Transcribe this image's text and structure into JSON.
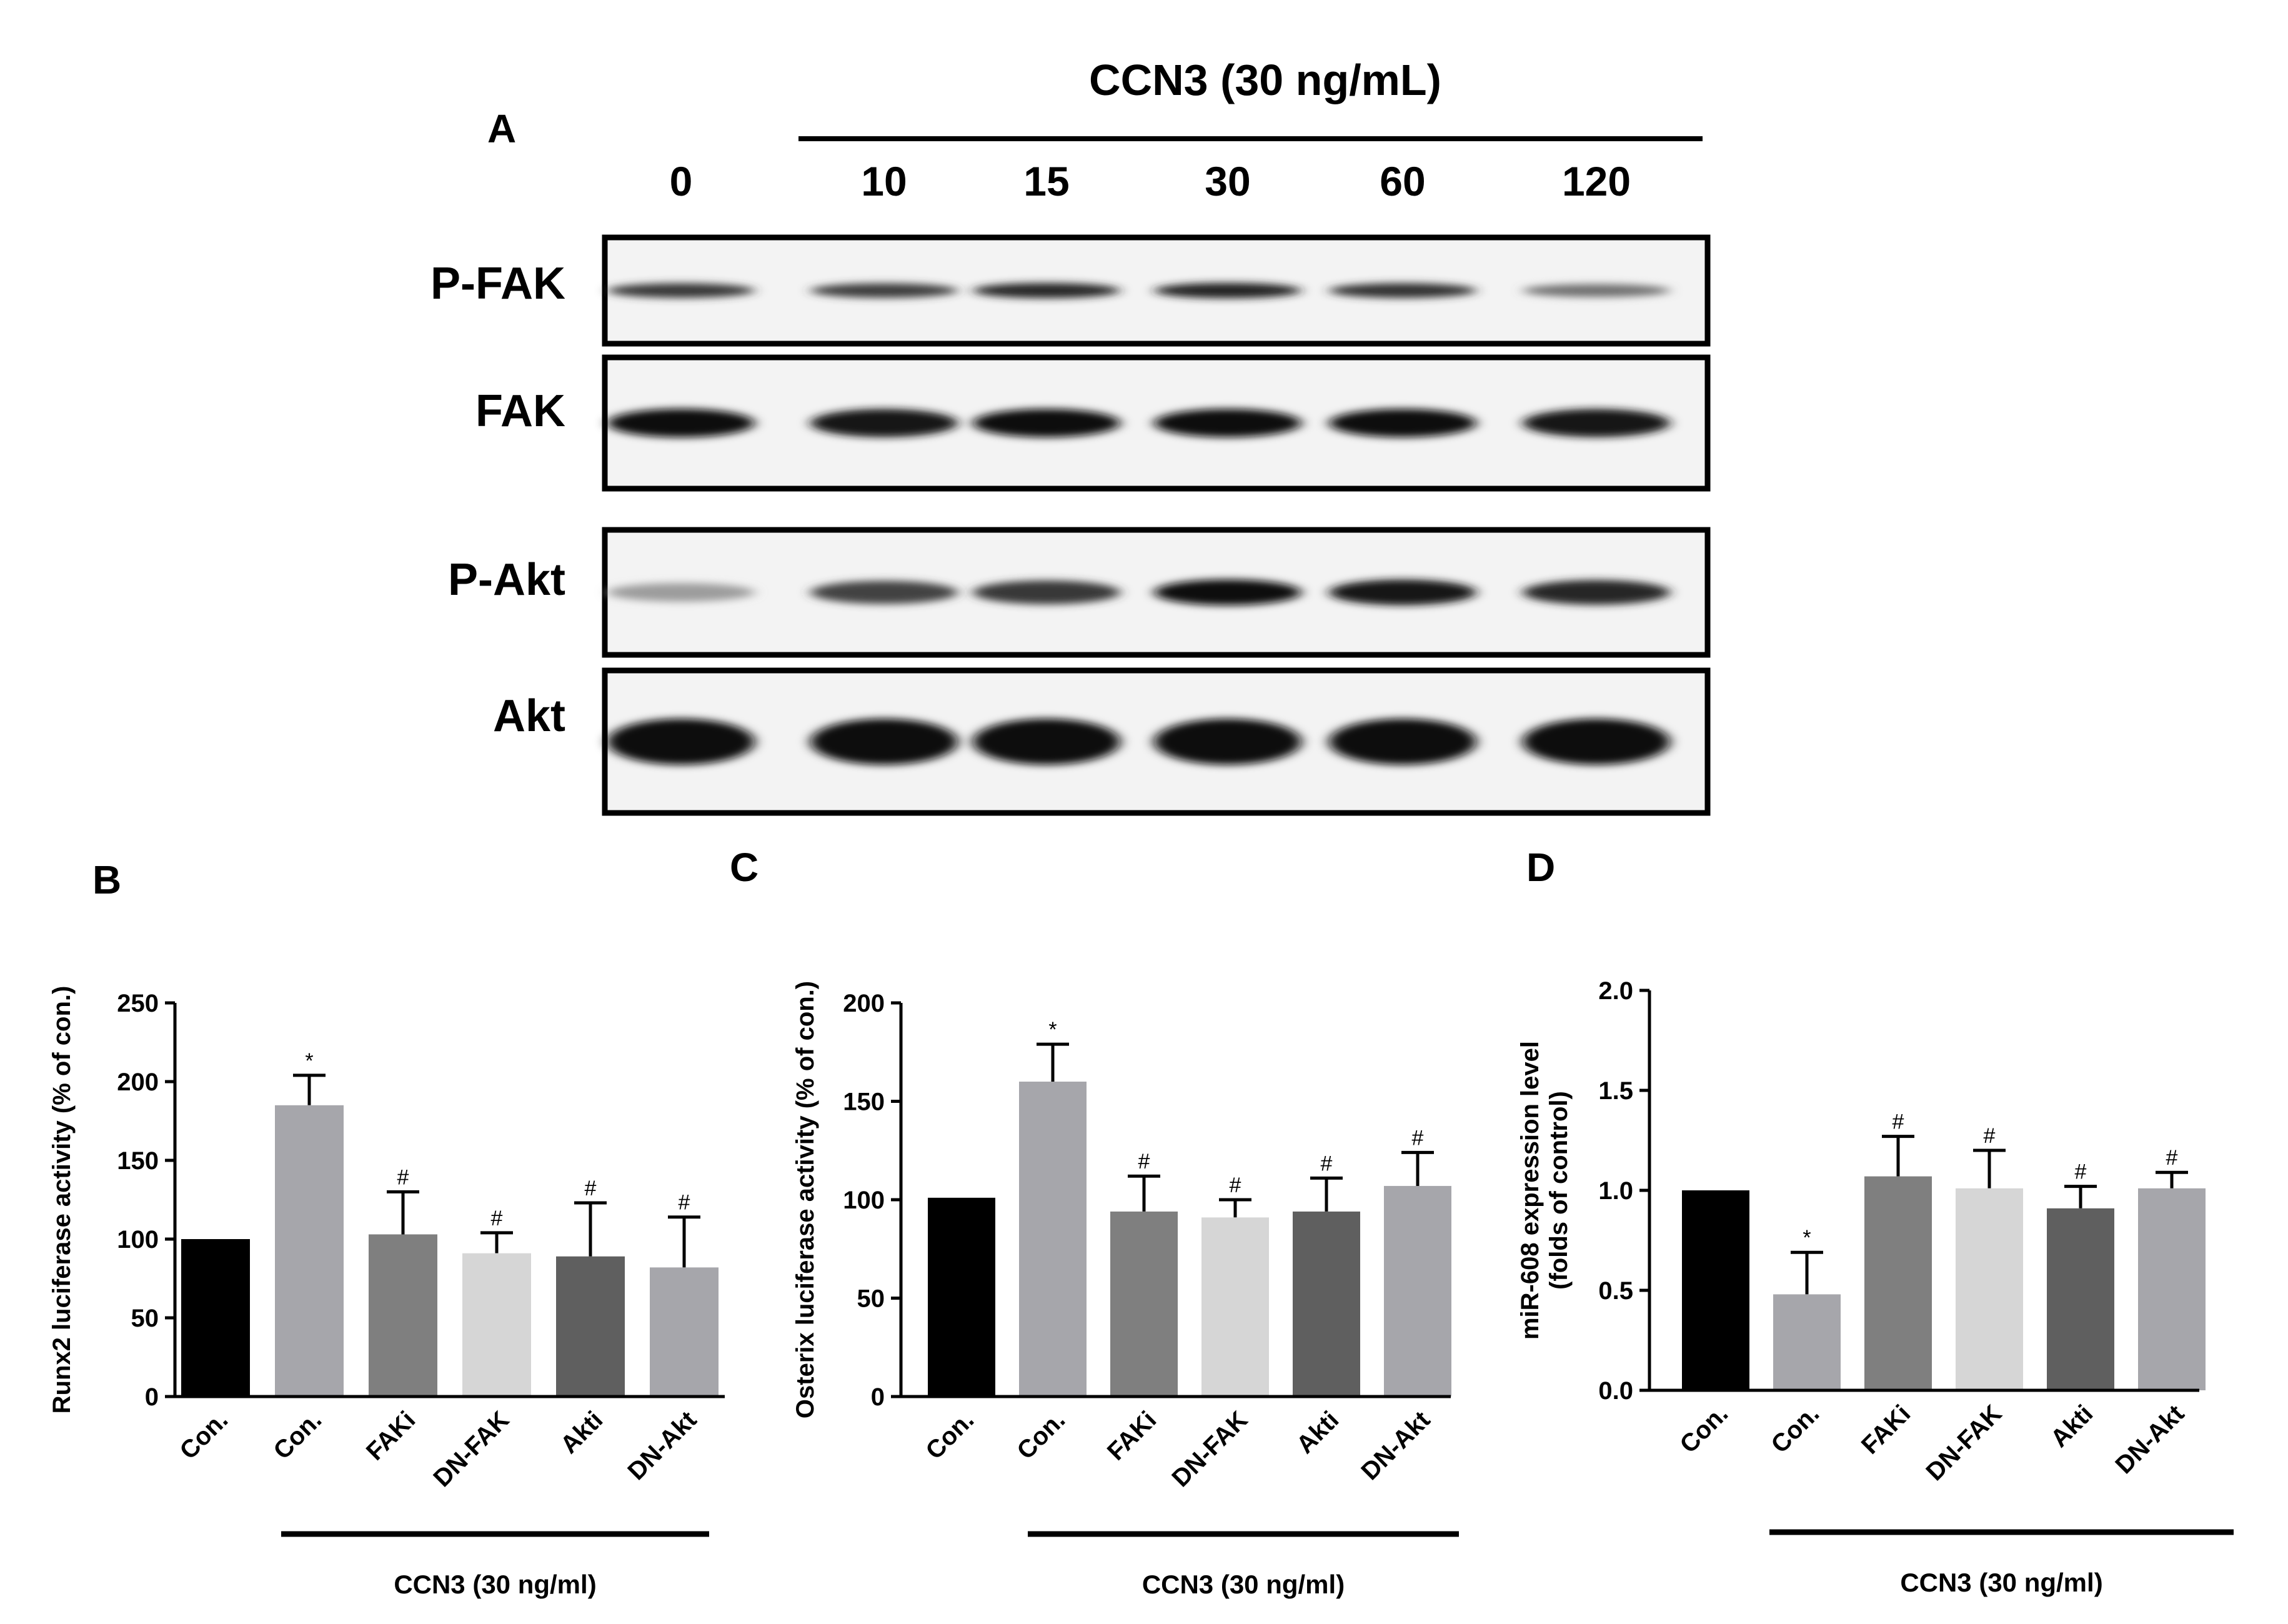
{
  "panel_A": {
    "letter": "A",
    "treatment": "CCN3 (30 ng/mL)",
    "lanes": [
      "0",
      "10",
      "15",
      "30",
      "60",
      "120"
    ],
    "rows": [
      {
        "name": "P-FAK",
        "intensity": [
          0.8,
          0.78,
          0.88,
          0.9,
          0.82,
          0.55
        ]
      },
      {
        "name": "FAK",
        "intensity": [
          1.0,
          0.96,
          0.98,
          0.98,
          0.98,
          0.96
        ]
      },
      {
        "name": "P-Akt",
        "intensity": [
          0.35,
          0.75,
          0.8,
          0.98,
          0.96,
          0.88
        ]
      },
      {
        "name": "Akt",
        "intensity": [
          1.0,
          1.0,
          1.0,
          1.0,
          1.0,
          1.0
        ]
      }
    ]
  },
  "chart_data": [
    {
      "panel": "B",
      "type": "bar",
      "categories": [
        "Con.",
        "Con.",
        "FAKi",
        "DN-FAK",
        "Akti",
        "DN-Akt"
      ],
      "values": [
        100,
        185,
        103,
        91,
        89,
        82
      ],
      "errors": [
        0,
        19,
        27,
        13,
        34,
        32
      ],
      "significance": [
        "",
        "*",
        "#",
        "#",
        "#",
        "#"
      ],
      "colors": [
        "#000000",
        "#a6a6ab",
        "#7f7f7f",
        "#d6d6d6",
        "#5f5f5f",
        "#a6a6ab"
      ],
      "ylabel": "Runx2 luciferase activity (% of con.)",
      "ylim": [
        0,
        250
      ],
      "yticks": [
        "0",
        "50",
        "100",
        "150",
        "200",
        "250"
      ],
      "group_label": "CCN3 (30 ng/ml)"
    },
    {
      "panel": "C",
      "type": "bar",
      "categories": [
        "Con.",
        "Con.",
        "FAKi",
        "DN-FAK",
        "Akti",
        "DN-Akt"
      ],
      "values": [
        101,
        160,
        94,
        91,
        94,
        107
      ],
      "errors": [
        0,
        19,
        18,
        9,
        17,
        17
      ],
      "significance": [
        "",
        "*",
        "#",
        "#",
        "#",
        "#"
      ],
      "colors": [
        "#000000",
        "#a6a6ab",
        "#7f7f7f",
        "#d6d6d6",
        "#5f5f5f",
        "#a6a6ab"
      ],
      "ylabel": "Osterix luciferase activity (% of con.)",
      "ylim": [
        0,
        200
      ],
      "yticks": [
        "0",
        "50",
        "100",
        "150",
        "200"
      ],
      "group_label": "CCN3 (30 ng/ml)"
    },
    {
      "panel": "D",
      "type": "bar",
      "categories": [
        "Con.",
        "Con.",
        "FAKi",
        "DN-FAK",
        "Akti",
        "DN-Akt"
      ],
      "values": [
        1.0,
        0.48,
        1.07,
        1.01,
        0.91,
        1.01
      ],
      "errors": [
        0,
        0.21,
        0.2,
        0.19,
        0.11,
        0.08
      ],
      "significance": [
        "",
        "*",
        "#",
        "#",
        "#",
        "#"
      ],
      "colors": [
        "#000000",
        "#a6a6ab",
        "#7f7f7f",
        "#d6d6d6",
        "#5f5f5f",
        "#a6a6ab"
      ],
      "ylabel_lines": [
        "miR-608 expression level",
        "(folds of control)"
      ],
      "ylim": [
        0,
        2.0
      ],
      "yticks": [
        "0.0",
        "0.5",
        "1.0",
        "1.5",
        "2.0"
      ],
      "group_label": "CCN3 (30 ng/ml)"
    }
  ]
}
